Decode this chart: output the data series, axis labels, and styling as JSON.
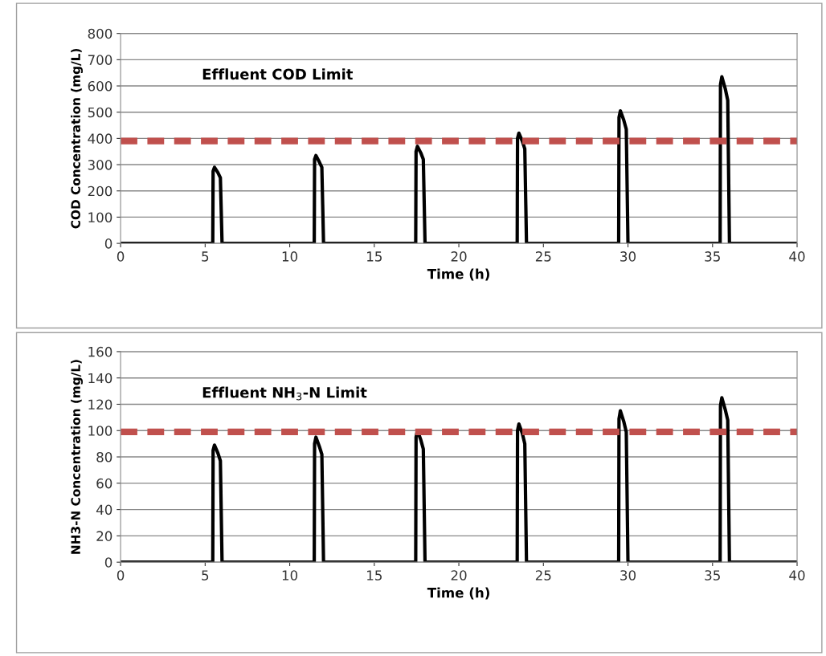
{
  "chart_data": [
    {
      "type": "line",
      "xlabel": "Time (h)",
      "ylabel": "COD Concentration (mg/L)",
      "xlim": [
        0,
        40
      ],
      "xticks": [
        0,
        5,
        10,
        15,
        20,
        25,
        30,
        35,
        40
      ],
      "ylim": [
        0,
        800
      ],
      "yticks": [
        0,
        100,
        200,
        300,
        400,
        500,
        600,
        700,
        800
      ],
      "grid": "y",
      "legend": false,
      "marker": "none",
      "line_style": "solid",
      "ref_lines": [
        {
          "axis": "y",
          "value": 390,
          "color": "#c0504d",
          "line_style": "dashed"
        }
      ],
      "annotations": [
        "Effluent COD Limit"
      ],
      "series": [
        {
          "color": "#000000",
          "x": [
            0,
            5.45,
            5.47,
            5.55,
            5.75,
            5.9,
            6.0,
            11.45,
            11.47,
            11.55,
            11.75,
            11.9,
            12.0,
            17.45,
            17.47,
            17.55,
            17.75,
            17.9,
            18.0,
            23.45,
            23.47,
            23.55,
            23.75,
            23.9,
            24.0,
            29.45,
            29.47,
            29.55,
            29.75,
            29.9,
            30.0,
            35.45,
            35.47,
            35.55,
            35.75,
            35.9,
            36.0,
            40
          ],
          "values": [
            0,
            0,
            275,
            290,
            270,
            250,
            0,
            0,
            320,
            335,
            310,
            290,
            0,
            0,
            350,
            370,
            345,
            320,
            0,
            0,
            400,
            420,
            390,
            360,
            0,
            0,
            480,
            505,
            470,
            435,
            0,
            0,
            605,
            635,
            590,
            545,
            0,
            0
          ]
        }
      ]
    },
    {
      "type": "line",
      "xlabel": "Time (h)",
      "ylabel": "NH3-N Concentration (mg/L)",
      "xlim": [
        0,
        40
      ],
      "xticks": [
        0,
        5,
        10,
        15,
        20,
        25,
        30,
        35,
        40
      ],
      "ylim": [
        0,
        160
      ],
      "yticks": [
        0,
        20,
        40,
        60,
        80,
        100,
        120,
        140,
        160
      ],
      "grid": "y",
      "legend": false,
      "marker": "none",
      "line_style": "solid",
      "ref_lines": [
        {
          "axis": "y",
          "value": 99,
          "color": "#c0504d",
          "line_style": "dashed"
        }
      ],
      "annotations": [
        "Effluent NH$_{3}$-N Limit"
      ],
      "series": [
        {
          "color": "#000000",
          "x": [
            0,
            5.45,
            5.47,
            5.55,
            5.75,
            5.9,
            6.0,
            11.45,
            11.47,
            11.55,
            11.75,
            11.9,
            12.0,
            17.45,
            17.47,
            17.55,
            17.75,
            17.9,
            18.0,
            23.45,
            23.47,
            23.55,
            23.75,
            23.9,
            24.0,
            29.45,
            29.47,
            29.55,
            29.75,
            29.9,
            30.0,
            35.45,
            35.47,
            35.55,
            35.75,
            35.9,
            36.0,
            40
          ],
          "values": [
            0,
            0,
            85,
            89,
            83,
            77,
            0,
            0,
            90,
            95,
            88,
            82,
            0,
            0,
            95,
            100,
            93,
            86,
            0,
            0,
            100,
            105,
            98,
            90,
            0,
            0,
            109,
            115,
            107,
            99,
            0,
            0,
            119,
            125,
            116,
            108,
            0,
            0
          ]
        }
      ]
    }
  ]
}
